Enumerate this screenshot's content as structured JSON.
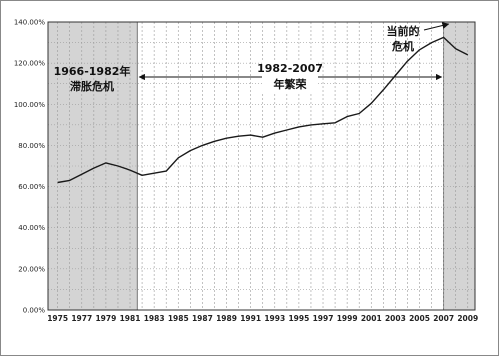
{
  "chart_data": {
    "type": "line",
    "title": "",
    "xlabel": "",
    "ylabel": "",
    "x": [
      1975,
      1976,
      1977,
      1978,
      1979,
      1980,
      1981,
      1982,
      1983,
      1984,
      1985,
      1986,
      1987,
      1988,
      1989,
      1990,
      1991,
      1992,
      1993,
      1994,
      1995,
      1996,
      1997,
      1998,
      1999,
      2000,
      2001,
      2002,
      2003,
      2004,
      2005,
      2006,
      2007,
      2008,
      2009
    ],
    "series": [
      {
        "values": [
          62.0,
          63.0,
          66.0,
          69.0,
          71.5,
          70.0,
          68.0,
          65.5,
          66.5,
          67.5,
          74.0,
          77.5,
          80.0,
          82.0,
          83.5,
          84.5,
          85.0,
          84.0,
          86.0,
          87.5,
          89.0,
          90.0,
          90.5,
          91.0,
          94.0,
          95.5,
          100.5,
          107.0,
          114.0,
          121.0,
          126.5,
          130.0,
          132.5,
          127.0,
          124.0
        ]
      }
    ],
    "x_ticks": [
      "1975",
      "1977",
      "1979",
      "1981",
      "1983",
      "1985",
      "1987",
      "1989",
      "1991",
      "1993",
      "1995",
      "1997",
      "1999",
      "2001",
      "2003",
      "2005",
      "2007",
      "2009"
    ],
    "y_ticks": [
      "0.00%",
      "20.00%",
      "40.00%",
      "60.00%",
      "80.00%",
      "100.00%",
      "120.00%",
      "140.00%"
    ],
    "xlim": [
      1974.2,
      2009.6
    ],
    "ylim": [
      0,
      140
    ],
    "grid": true,
    "shaded_regions": [
      {
        "x_start": 1974.2,
        "x_end": 1981.6
      },
      {
        "x_start": 2007.0,
        "x_end": 2009.6
      }
    ],
    "annotations": [
      {
        "lines": [
          "1966-1982年",
          "滞胀危机"
        ]
      },
      {
        "lines": [
          "1982-2007",
          "年繁荣"
        ]
      },
      {
        "lines": [
          "当前的",
          "危机"
        ]
      }
    ]
  },
  "colors": {
    "line": "#1a1a1a",
    "shade": "#d4d4d4",
    "grid": "#9a9a9a",
    "frame": "#333333"
  }
}
